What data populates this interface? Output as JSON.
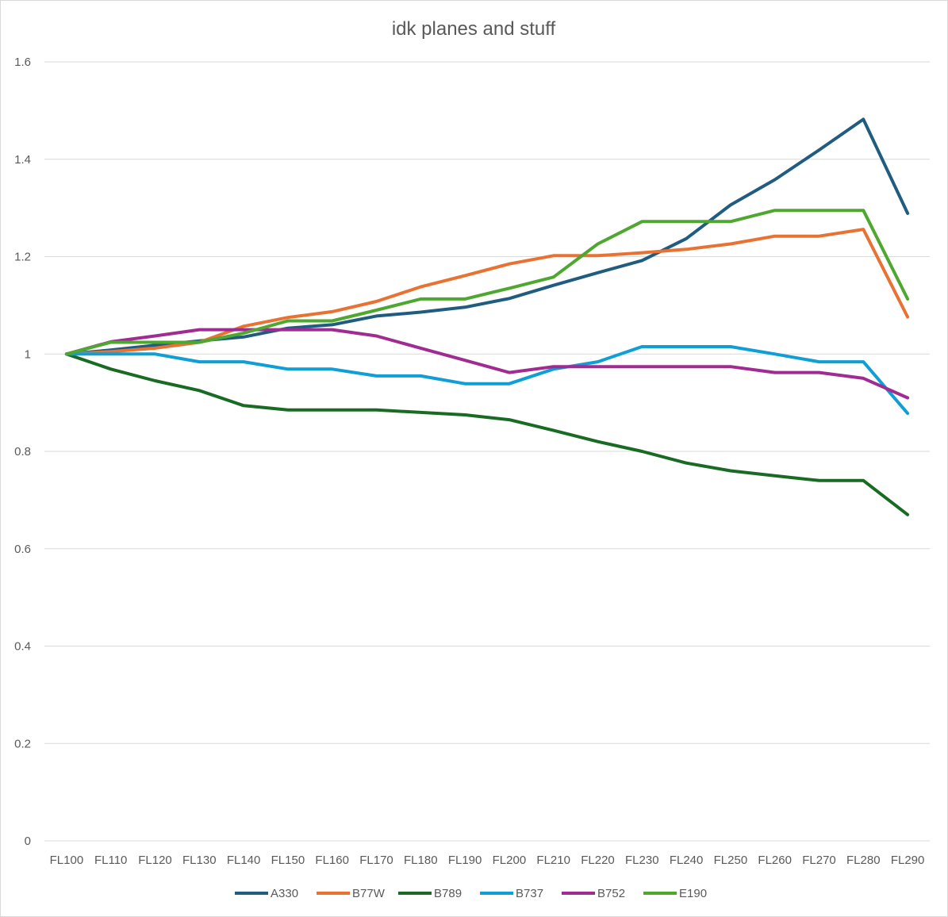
{
  "chart_data": {
    "type": "line",
    "title": "idk planes and stuff",
    "xlabel": "",
    "ylabel": "",
    "ylim": [
      0,
      1.6
    ],
    "yticks": [
      "0",
      "0.2",
      "0.4",
      "0.6",
      "0.8",
      "1",
      "1.2",
      "1.4",
      "1.6"
    ],
    "grid": true,
    "legend": "bottom",
    "categories": [
      "FL100",
      "FL110",
      "FL120",
      "FL130",
      "FL140",
      "FL150",
      "FL160",
      "FL170",
      "FL180",
      "FL190",
      "FL200",
      "FL210",
      "FL220",
      "FL230",
      "FL240",
      "FL250",
      "FL260",
      "FL270",
      "FL280",
      "FL290"
    ],
    "series": [
      {
        "name": "A330",
        "color": "#1f5c80",
        "values": [
          1.0,
          1.008,
          1.018,
          1.027,
          1.035,
          1.053,
          1.06,
          1.078,
          1.086,
          1.096,
          1.114,
          1.141,
          1.167,
          1.192,
          1.237,
          1.306,
          1.358,
          1.419,
          1.482,
          1.289
        ]
      },
      {
        "name": "B77W",
        "color": "#e97132",
        "values": [
          1.0,
          1.005,
          1.012,
          1.024,
          1.057,
          1.075,
          1.087,
          1.108,
          1.138,
          1.161,
          1.185,
          1.202,
          1.202,
          1.208,
          1.215,
          1.226,
          1.242,
          1.242,
          1.256,
          1.076
        ]
      },
      {
        "name": "B789",
        "color": "#196b24",
        "values": [
          1.0,
          0.969,
          0.945,
          0.925,
          0.894,
          0.885,
          0.885,
          0.885,
          0.88,
          0.875,
          0.865,
          0.843,
          0.82,
          0.8,
          0.776,
          0.76,
          0.75,
          0.74,
          0.74,
          0.67
        ]
      },
      {
        "name": "B737",
        "color": "#0f9ed5",
        "values": [
          1.0,
          1.0,
          1.0,
          0.984,
          0.984,
          0.969,
          0.969,
          0.955,
          0.955,
          0.939,
          0.939,
          0.969,
          0.984,
          1.015,
          1.015,
          1.015,
          1.0,
          0.984,
          0.984,
          0.878
        ]
      },
      {
        "name": "B752",
        "color": "#a02b93",
        "values": [
          1.0,
          1.025,
          1.037,
          1.05,
          1.05,
          1.05,
          1.05,
          1.037,
          1.012,
          0.987,
          0.962,
          0.974,
          0.974,
          0.974,
          0.974,
          0.974,
          0.962,
          0.962,
          0.95,
          0.91
        ]
      },
      {
        "name": "E190",
        "color": "#4ea72e",
        "values": [
          1.0,
          1.024,
          1.024,
          1.024,
          1.043,
          1.068,
          1.068,
          1.09,
          1.113,
          1.113,
          1.135,
          1.158,
          1.226,
          1.272,
          1.272,
          1.272,
          1.295,
          1.295,
          1.295,
          1.113
        ]
      }
    ]
  }
}
